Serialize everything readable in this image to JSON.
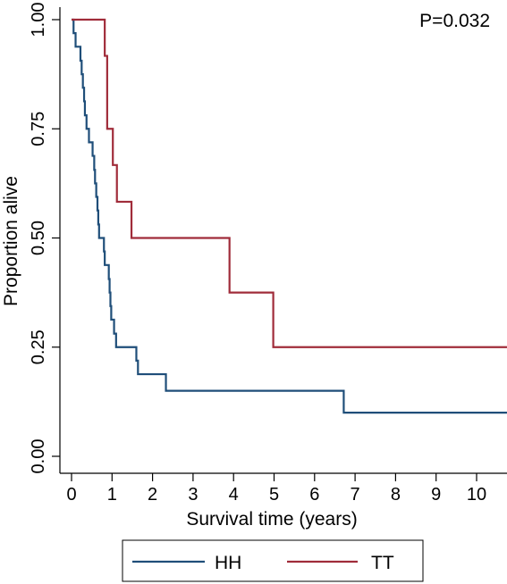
{
  "chart_data": {
    "type": "line",
    "subtype": "kaplan-meier step",
    "title": "",
    "xlabel": "Survival time (years)",
    "ylabel": "Proportion alive",
    "xlim": [
      0,
      10.75
    ],
    "ylim": [
      0,
      1
    ],
    "x_ticks": [
      0,
      1,
      2,
      3,
      4,
      5,
      6,
      7,
      8,
      9,
      10
    ],
    "y_ticks": [
      0,
      0.25,
      0.5,
      0.75,
      1
    ],
    "y_tick_labels": [
      "0.00",
      "0.25",
      "0.50",
      "0.75",
      "1.00"
    ],
    "grid": false,
    "legend_position": "bottom",
    "annotation": "P=0.032",
    "series": [
      {
        "name": "HH",
        "color": "#1f4e79",
        "steps": [
          [
            0,
            1.0
          ],
          [
            0.05,
            0.969
          ],
          [
            0.1,
            0.938
          ],
          [
            0.22,
            0.906
          ],
          [
            0.25,
            0.875
          ],
          [
            0.28,
            0.844
          ],
          [
            0.31,
            0.813
          ],
          [
            0.33,
            0.781
          ],
          [
            0.37,
            0.75
          ],
          [
            0.43,
            0.719
          ],
          [
            0.52,
            0.688
          ],
          [
            0.56,
            0.656
          ],
          [
            0.58,
            0.625
          ],
          [
            0.61,
            0.594
          ],
          [
            0.64,
            0.563
          ],
          [
            0.66,
            0.531
          ],
          [
            0.68,
            0.5
          ],
          [
            0.8,
            0.469
          ],
          [
            0.82,
            0.438
          ],
          [
            0.92,
            0.406
          ],
          [
            0.94,
            0.375
          ],
          [
            0.96,
            0.344
          ],
          [
            0.98,
            0.313
          ],
          [
            1.05,
            0.281
          ],
          [
            1.1,
            0.25
          ],
          [
            1.6,
            0.219
          ],
          [
            1.64,
            0.188
          ],
          [
            2.33,
            0.15
          ],
          [
            6.72,
            0.1
          ],
          [
            10.75,
            0.1
          ]
        ]
      },
      {
        "name": "TT",
        "color": "#a02c3a",
        "steps": [
          [
            0,
            1.0
          ],
          [
            0.82,
            0.917
          ],
          [
            0.88,
            0.75
          ],
          [
            1.02,
            0.667
          ],
          [
            1.12,
            0.583
          ],
          [
            1.48,
            0.5
          ],
          [
            3.9,
            0.375
          ],
          [
            4.98,
            0.25
          ],
          [
            10.75,
            0.25
          ]
        ]
      }
    ]
  }
}
